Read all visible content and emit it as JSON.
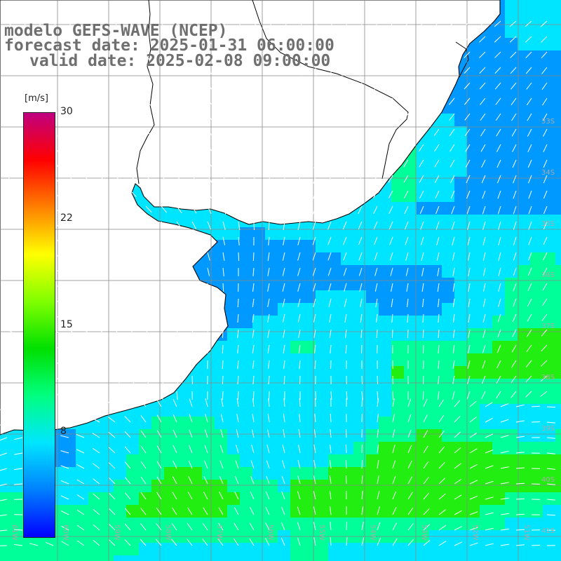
{
  "header": {
    "title": "modelo GEFS-WAVE (NCEP)",
    "forecast_date": "forecast date: 2025-01-31 06:00:00",
    "valid_date": "valid date: 2025-02-08 09:00:00"
  },
  "colorbar": {
    "unit": "[m/s]",
    "ticks": [
      "30",
      "22",
      "15",
      "8"
    ],
    "tick_values": [
      30,
      22,
      15,
      8
    ],
    "min": 0,
    "max": 30,
    "colors": [
      "#0000ff",
      "#0080ff",
      "#00e5ff",
      "#00ff80",
      "#00e000",
      "#80ff00",
      "#ffff00",
      "#ff8000",
      "#ff0000",
      "#c00080"
    ]
  },
  "map": {
    "lon_labels": [
      "61W",
      "60W",
      "59W",
      "58W",
      "57W",
      "56W",
      "55W",
      "54W",
      "53W",
      "52W",
      "51W"
    ],
    "lat_labels": [
      "33S",
      "34S",
      "35S",
      "36S",
      "37S",
      "38S",
      "39S",
      "40S",
      "41S"
    ],
    "field": "wind speed and direction",
    "land_color": "#ffffff",
    "coast_color": "#000000",
    "grid_color": "#888888"
  }
}
